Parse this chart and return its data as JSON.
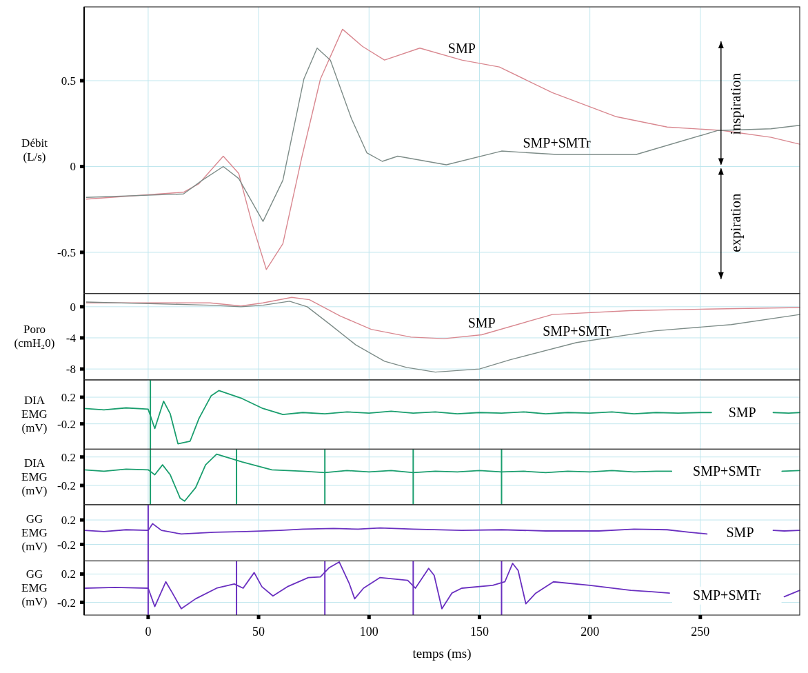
{
  "chart_data": [
    {
      "type": "line",
      "ylabel": "Débit (L/s)",
      "xlim": [
        -29,
        295
      ],
      "xticks": [
        0,
        50,
        100,
        150,
        200,
        250
      ],
      "ylim": [
        -0.74,
        0.93
      ],
      "yticks": [
        0.5,
        0,
        -0.5
      ],
      "grid": true,
      "tick_labels": "y",
      "annotations": [
        "inspiration",
        "expiration"
      ],
      "series": [
        {
          "name": "SMP",
          "color": "#d98890",
          "x": [
            -28,
            16,
            23,
            34,
            41,
            47,
            53.5,
            61,
            69.5,
            78,
            88,
            97,
            107,
            123,
            142,
            159,
            183,
            212,
            235,
            260,
            282,
            295
          ],
          "values": [
            -0.19,
            -0.15,
            -0.1,
            0.06,
            -0.04,
            -0.33,
            -0.6,
            -0.45,
            0.05,
            0.51,
            0.8,
            0.7,
            0.62,
            0.69,
            0.62,
            0.58,
            0.43,
            0.29,
            0.23,
            0.21,
            0.17,
            0.13
          ]
        },
        {
          "name": "SMP+SMTr",
          "color": "#7d8c88",
          "x": [
            -28,
            16,
            24.5,
            34,
            41,
            52,
            61,
            70.5,
            76.5,
            82.5,
            92,
            99,
            106,
            113,
            135,
            160,
            185,
            221,
            258,
            282,
            295
          ],
          "values": [
            -0.18,
            -0.16,
            -0.08,
            0.0,
            -0.07,
            -0.32,
            -0.08,
            0.51,
            0.69,
            0.62,
            0.28,
            0.08,
            0.03,
            0.06,
            0.01,
            0.09,
            0.07,
            0.07,
            0.21,
            0.22,
            0.24
          ]
        }
      ]
    },
    {
      "type": "line",
      "ylabel": "Poro (cmH₂0)",
      "xlim": [
        -29,
        295
      ],
      "xticks": [
        0,
        50,
        100,
        150,
        200,
        250
      ],
      "ylim": [
        -9.4,
        1.7
      ],
      "yticks": [
        0,
        -4,
        -8
      ],
      "grid": true,
      "tick_labels": "y",
      "series": [
        {
          "name": "SMP",
          "color": "#d98890",
          "x": [
            -28,
            28,
            42,
            52,
            65,
            73,
            87,
            101,
            119,
            134,
            151,
            183,
            218,
            253,
            295
          ],
          "values": [
            0.5,
            0.5,
            0.1,
            0.5,
            1.2,
            0.9,
            -1.2,
            -2.9,
            -3.9,
            -4.1,
            -3.6,
            -1.0,
            -0.5,
            -0.3,
            -0.1
          ]
        },
        {
          "name": "SMP+SMTr",
          "color": "#7d8c88",
          "x": [
            -28,
            28,
            42,
            52,
            64,
            72,
            82,
            94,
            107,
            117,
            130,
            150,
            164,
            194,
            229,
            264,
            295
          ],
          "values": [
            0.6,
            0.2,
            0,
            0.2,
            0.7,
            0,
            -2.2,
            -4.9,
            -7.0,
            -7.8,
            -8.4,
            -8.0,
            -6.8,
            -4.6,
            -3.1,
            -2.3,
            -1.0
          ]
        }
      ]
    },
    {
      "type": "line",
      "ylabel": "DIA EMG (mV)",
      "xlim": [
        -29,
        295
      ],
      "xticks": [
        0,
        50,
        100,
        150,
        200,
        250
      ],
      "ylim": [
        -0.58,
        0.46
      ],
      "yticks": [
        0.2,
        -0.2
      ],
      "grid": true,
      "tick_labels": "y",
      "ref_lines": [
        {
          "axis": "x",
          "value": 1,
          "color": "#1a9e6e"
        }
      ],
      "series": [
        {
          "name": "SMP",
          "color": "#1a9e6e",
          "x": [
            -29,
            -20,
            -10,
            0,
            3,
            7,
            10,
            13.5,
            19,
            23,
            28.5,
            32,
            42.5,
            52,
            61,
            70,
            80,
            90,
            100,
            110,
            120,
            130,
            140,
            150,
            160,
            170,
            180,
            190,
            200,
            210,
            220,
            230,
            240,
            250,
            255,
            270,
            283,
            290,
            295
          ],
          "values": [
            0.03,
            0.01,
            0.04,
            0.02,
            -0.27,
            0.14,
            -0.05,
            -0.5,
            -0.46,
            -0.12,
            0.22,
            0.3,
            0.18,
            0.03,
            -0.06,
            -0.03,
            -0.05,
            -0.02,
            -0.04,
            -0.01,
            -0.04,
            -0.02,
            -0.05,
            -0.03,
            -0.04,
            -0.02,
            -0.05,
            -0.03,
            -0.04,
            -0.02,
            -0.05,
            -0.03,
            -0.04,
            -0.03,
            -0.03,
            null,
            -0.03,
            -0.04,
            -0.03
          ]
        }
      ]
    },
    {
      "type": "line",
      "ylabel": "DIA EMG (mV)",
      "xlim": [
        -29,
        295
      ],
      "xticks": [
        0,
        50,
        100,
        150,
        200,
        250
      ],
      "ylim": [
        -0.47,
        0.31
      ],
      "yticks": [
        0.2,
        -0.2
      ],
      "grid": true,
      "tick_labels": "y",
      "ref_lines": [
        {
          "axis": "x",
          "value": 1,
          "color": "#1a9e6e"
        },
        {
          "axis": "x",
          "value": 40,
          "color": "#1a9e6e"
        },
        {
          "axis": "x",
          "value": 80,
          "color": "#1a9e6e"
        },
        {
          "axis": "x",
          "value": 120,
          "color": "#1a9e6e"
        },
        {
          "axis": "x",
          "value": 160,
          "color": "#1a9e6e"
        }
      ],
      "series": [
        {
          "name": "SMP+SMTr",
          "color": "#1a9e6e",
          "x": [
            -29,
            -20,
            -10,
            0,
            3,
            6.5,
            10,
            14.5,
            16.5,
            21.5,
            26,
            31,
            42.5,
            56,
            70,
            80,
            90,
            100,
            110,
            120,
            130,
            140,
            150,
            160,
            170,
            180,
            190,
            200,
            210,
            220,
            230,
            237,
            262,
            287,
            295
          ],
          "values": [
            0.02,
            0.0,
            0.03,
            0.02,
            -0.05,
            0.09,
            -0.05,
            -0.38,
            -0.42,
            -0.23,
            0.09,
            0.24,
            0.13,
            0.02,
            0.0,
            -0.02,
            0.01,
            -0.01,
            0.01,
            -0.02,
            0.0,
            -0.01,
            0.01,
            -0.01,
            0.0,
            -0.02,
            0.0,
            -0.01,
            0.01,
            -0.01,
            0.0,
            0.0,
            null,
            0.0,
            0.01
          ]
        }
      ]
    },
    {
      "type": "line",
      "ylabel": "GG EMG (mV)",
      "xlim": [
        -29,
        295
      ],
      "xticks": [
        0,
        50,
        100,
        150,
        200,
        250
      ],
      "ylim": [
        -0.47,
        0.45
      ],
      "yticks": [
        0.2,
        -0.2
      ],
      "grid": true,
      "tick_labels": "y",
      "ref_lines": [
        {
          "axis": "x",
          "value": 0,
          "color": "#6a30c0"
        }
      ],
      "series": [
        {
          "name": "SMP",
          "color": "#6a30c0",
          "x": [
            -29,
            -20,
            -10,
            0,
            2,
            6,
            15,
            30,
            44,
            60,
            70,
            84,
            95,
            105,
            120,
            142,
            160,
            180,
            204,
            220,
            235,
            245,
            253,
            268,
            283,
            288,
            295
          ],
          "values": [
            0.03,
            0.01,
            0.04,
            0.03,
            0.14,
            0.03,
            -0.03,
            0.0,
            0.01,
            0.03,
            0.05,
            0.06,
            0.05,
            0.07,
            0.05,
            0.03,
            0.04,
            0.02,
            0.02,
            0.05,
            0.04,
            0.0,
            -0.03,
            null,
            0.03,
            0.02,
            0.03
          ]
        }
      ]
    },
    {
      "type": "line",
      "xlabel": "temps (ms)",
      "ylabel": "GG EMG (mV)",
      "xlim": [
        -29,
        295
      ],
      "xticks": [
        0,
        50,
        100,
        150,
        200,
        250
      ],
      "ylim": [
        -0.38,
        0.385
      ],
      "yticks": [
        0.2,
        -0.2
      ],
      "grid": true,
      "ref_lines": [
        {
          "axis": "x",
          "value": 0,
          "color": "#6a30c0"
        },
        {
          "axis": "x",
          "value": 40,
          "color": "#6a30c0"
        },
        {
          "axis": "x",
          "value": 80,
          "color": "#6a30c0"
        },
        {
          "axis": "x",
          "value": 120,
          "color": "#6a30c0"
        },
        {
          "axis": "x",
          "value": 160,
          "color": "#6a30c0"
        }
      ],
      "series": [
        {
          "name": "SMP+SMTr",
          "color": "#6a30c0",
          "x": [
            -29,
            -15,
            0,
            3,
            8,
            11,
            15,
            21.5,
            31,
            39,
            43,
            48,
            51.5,
            56.5,
            63,
            72.5,
            78,
            82,
            86.5,
            91,
            93.5,
            97.5,
            105,
            117.5,
            121,
            127,
            129.5,
            133,
            137.5,
            142,
            156,
            161.5,
            165,
            167.5,
            171,
            175.5,
            183.5,
            200,
            218.5,
            228,
            236,
            262,
            288,
            295
          ],
          "values": [
            0.0,
            0.01,
            0.0,
            -0.26,
            0.09,
            -0.07,
            -0.29,
            -0.15,
            0.0,
            0.06,
            0.0,
            0.22,
            0.02,
            -0.11,
            0.02,
            0.15,
            0.16,
            0.29,
            0.37,
            0.07,
            -0.15,
            0.0,
            0.15,
            0.11,
            0.0,
            0.28,
            0.18,
            -0.29,
            -0.07,
            0.0,
            0.04,
            0.09,
            0.35,
            0.25,
            -0.22,
            -0.07,
            0.09,
            0.04,
            -0.03,
            -0.05,
            -0.07,
            null,
            -0.12,
            -0.03
          ]
        }
      ]
    }
  ]
}
